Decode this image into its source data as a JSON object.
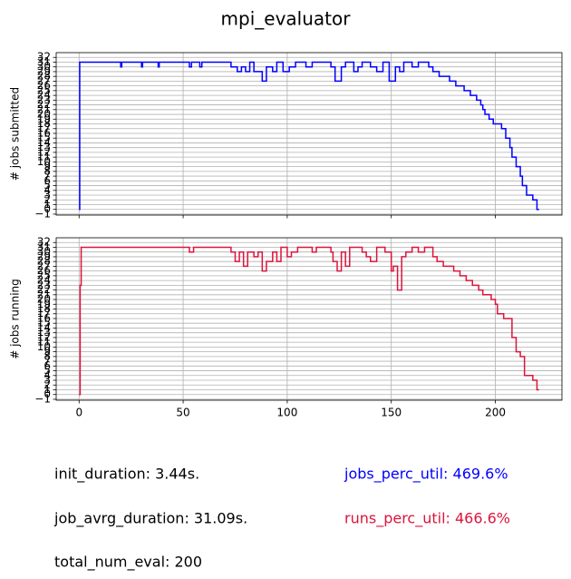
{
  "title": "mpi_evaluator",
  "annotations": [
    {
      "text": "init_duration: 3.44s.",
      "color": "#000000"
    },
    {
      "text": "job_avrg_duration: 31.09s.",
      "color": "#000000"
    },
    {
      "text": "total_num_eval: 200",
      "color": "#000000"
    },
    {
      "text": "jobs_perc_util: 469.6%",
      "color": "#0000ff"
    },
    {
      "text": "runs_perc_util: 466.6%",
      "color": "#dc143c"
    }
  ],
  "chart_data": [
    {
      "type": "line",
      "drawstyle": "steps-post",
      "ylabel": "# jobs submitted",
      "color": "#0000ff",
      "x": [
        0,
        0.3,
        20,
        20.5,
        30,
        30.5,
        38,
        38.5,
        53,
        54,
        58,
        59,
        73,
        76,
        78,
        80,
        82,
        84,
        88,
        90,
        93,
        95,
        98,
        101,
        104,
        109,
        112,
        121,
        123,
        126,
        128,
        132,
        134,
        136,
        140,
        143,
        146,
        149,
        152,
        154,
        156,
        160,
        163,
        168,
        170,
        173,
        178,
        181,
        185,
        188,
        191,
        193,
        194,
        195,
        197,
        199,
        203,
        205,
        207,
        208,
        210,
        212,
        213,
        215,
        218,
        220,
        221
      ],
      "values": [
        0,
        31,
        30,
        31,
        30,
        31,
        30,
        31,
        30,
        31,
        30,
        31,
        30,
        29,
        30,
        29,
        31,
        29,
        27,
        30,
        29,
        31,
        29,
        30,
        31,
        30,
        31,
        30,
        27,
        30,
        31,
        29,
        30,
        31,
        30,
        29,
        31,
        27,
        30,
        29,
        31,
        30,
        31,
        30,
        29,
        28,
        27,
        26,
        25,
        24,
        23,
        22,
        21,
        20,
        19,
        18,
        17,
        15,
        13,
        11,
        9,
        7,
        5,
        3,
        2,
        0,
        0
      ],
      "xlim": [
        -11,
        232
      ],
      "xticks": [
        0,
        50,
        100,
        150,
        200
      ],
      "show_xtick_labels": false,
      "ylim": [
        -1.2,
        33
      ],
      "yticks": [
        {
          "value": -1,
          "label": "−1"
        },
        0,
        1,
        2,
        3,
        4,
        5,
        6,
        7,
        8,
        9,
        10,
        11,
        12,
        13,
        14,
        15,
        16,
        17,
        18,
        19,
        20,
        21,
        22,
        23,
        24,
        25,
        26,
        27,
        28,
        29,
        30,
        31,
        32
      ],
      "grid": true
    },
    {
      "type": "line",
      "drawstyle": "steps-post",
      "ylabel": "# jobs running",
      "color": "#dc143c",
      "x": [
        0,
        0.5,
        1,
        53,
        55,
        73,
        75,
        77,
        79,
        81,
        84,
        86,
        88,
        90,
        93,
        95,
        97,
        100,
        102,
        105,
        112,
        114,
        121,
        122,
        124,
        126,
        128,
        130,
        136,
        138,
        140,
        143,
        147,
        150,
        151,
        153,
        155,
        157,
        160,
        163,
        166,
        170,
        172,
        175,
        180,
        183,
        186,
        189,
        192,
        194,
        198,
        200,
        201,
        204,
        208,
        210,
        212,
        214,
        218,
        220,
        221
      ],
      "values": [
        0,
        23,
        31,
        30,
        31,
        30,
        28,
        30,
        27,
        30,
        29,
        30,
        26,
        28,
        30,
        28,
        31,
        29,
        30,
        31,
        30,
        31,
        30,
        28,
        26,
        30,
        27,
        31,
        30,
        29,
        28,
        31,
        30,
        26,
        27,
        22,
        29,
        30,
        31,
        30,
        31,
        29,
        28,
        27,
        26,
        25,
        24,
        23,
        22,
        21,
        20,
        19,
        17,
        16,
        12,
        9,
        8,
        4,
        3,
        1,
        1
      ],
      "xlim": [
        -11,
        232
      ],
      "xticks": [
        0,
        50,
        100,
        150,
        200
      ],
      "show_xtick_labels": true,
      "ylim": [
        -1.2,
        33
      ],
      "yticks": [
        {
          "value": -1,
          "label": "−1"
        },
        0,
        1,
        2,
        3,
        4,
        5,
        6,
        7,
        8,
        9,
        10,
        11,
        12,
        13,
        14,
        15,
        16,
        17,
        18,
        19,
        20,
        21,
        22,
        23,
        24,
        25,
        26,
        27,
        28,
        29,
        30,
        31,
        32
      ],
      "grid": true
    }
  ]
}
